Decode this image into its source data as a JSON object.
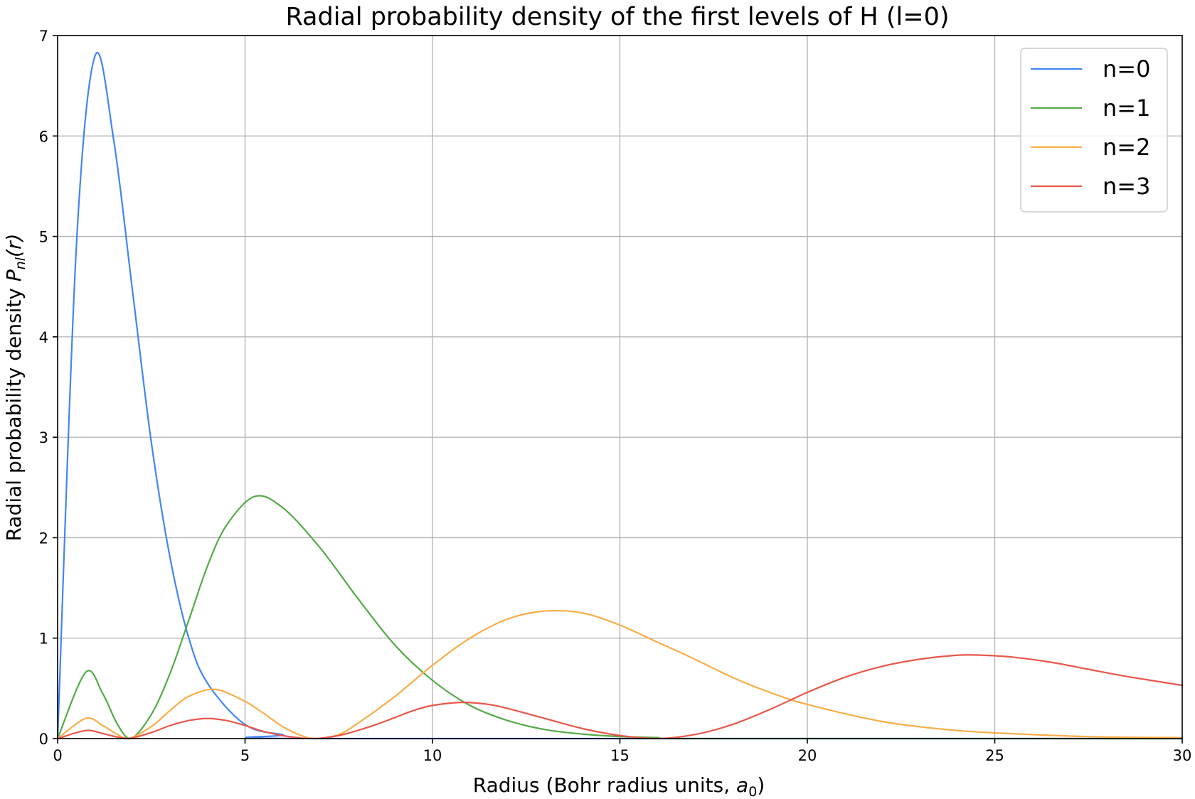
{
  "chart_data": {
    "type": "line",
    "title": "Radial probability density of the first levels of H (l=0)",
    "xlabel": "Radius (Bohr radius units, ",
    "xlabel_symbol": "a",
    "xlabel_subscript": "0",
    "xlabel_end": ")",
    "ylabel": "Radial probability density ",
    "ylabel_symbol": "P",
    "ylabel_subscript": "nl",
    "ylabel_end": "(r)",
    "xlim": [
      0,
      30
    ],
    "ylim": [
      0,
      7
    ],
    "xticks": [
      "0",
      "5",
      "10",
      "15",
      "20",
      "25",
      "30"
    ],
    "yticks": [
      "0",
      "1",
      "2",
      "3",
      "4",
      "5",
      "6",
      "7"
    ],
    "grid": true,
    "legend_position": "top-right",
    "series": [
      {
        "name": "n=0",
        "color": "#4285f4",
        "x": [
          0,
          0.5,
          1.0,
          1.5,
          2.0,
          2.5,
          3.0,
          3.5,
          4.0,
          5.0,
          6.0,
          7.0,
          30
        ],
        "y": [
          0,
          4.9,
          6.8,
          5.95,
          4.45,
          2.95,
          1.8,
          1.0,
          0.55,
          0.14,
          0.04,
          0.0,
          0.0
        ]
      },
      {
        "name": "n=1",
        "color": "#55aa48",
        "x": [
          0,
          0.75,
          1.2,
          1.6,
          1.95,
          2.5,
          3.0,
          3.5,
          4.0,
          4.5,
          5.25,
          6.0,
          7.0,
          8.0,
          9.0,
          10.0,
          11.0,
          12.0,
          13.0,
          14.0,
          15.0,
          16.0,
          17.0,
          30
        ],
        "y": [
          0,
          0.66,
          0.45,
          0.14,
          0.0,
          0.24,
          0.65,
          1.18,
          1.72,
          2.12,
          2.41,
          2.3,
          1.9,
          1.4,
          0.93,
          0.58,
          0.33,
          0.18,
          0.09,
          0.045,
          0.02,
          0.01,
          0.0,
          0.0
        ]
      },
      {
        "name": "n=2",
        "color": "#f9ae48",
        "x": [
          0,
          0.75,
          1.2,
          1.6,
          1.9,
          2.5,
          3.0,
          3.5,
          4.2,
          5.0,
          5.5,
          6.0,
          6.5,
          6.9,
          7.5,
          8.0,
          9.0,
          10.0,
          11.0,
          12.0,
          13.0,
          14.0,
          15.0,
          16.0,
          17.0,
          18.0,
          19.0,
          20.0,
          22.0,
          24.0,
          26.0,
          28.0,
          30
        ],
        "y": [
          0,
          0.2,
          0.13,
          0.04,
          0.0,
          0.12,
          0.28,
          0.42,
          0.49,
          0.37,
          0.25,
          0.12,
          0.03,
          0.0,
          0.04,
          0.15,
          0.42,
          0.73,
          1.0,
          1.19,
          1.27,
          1.25,
          1.13,
          0.96,
          0.79,
          0.61,
          0.46,
          0.34,
          0.17,
          0.08,
          0.04,
          0.015,
          0.01
        ]
      },
      {
        "name": "n=3",
        "color": "#e9574a",
        "x": [
          0,
          0.75,
          1.2,
          1.6,
          1.9,
          2.5,
          3.0,
          3.5,
          4.0,
          4.5,
          5.0,
          5.5,
          6.0,
          6.5,
          6.9,
          7.5,
          8.0,
          8.5,
          9.0,
          9.5,
          10.0,
          10.8,
          11.5,
          12.0,
          13.0,
          14.0,
          15.0,
          16.0,
          17.0,
          18.0,
          19.0,
          20.0,
          21.0,
          22.0,
          23.0,
          24.0,
          24.7,
          25.5,
          26.5,
          27.5,
          28.5,
          30
        ],
        "y": [
          0,
          0.08,
          0.05,
          0.015,
          0.0,
          0.06,
          0.13,
          0.18,
          0.2,
          0.18,
          0.13,
          0.07,
          0.03,
          0.005,
          0.0,
          0.03,
          0.08,
          0.14,
          0.21,
          0.28,
          0.33,
          0.36,
          0.34,
          0.3,
          0.2,
          0.1,
          0.03,
          0.0,
          0.04,
          0.14,
          0.29,
          0.46,
          0.61,
          0.72,
          0.79,
          0.83,
          0.83,
          0.81,
          0.76,
          0.69,
          0.62,
          0.53
        ]
      }
    ]
  }
}
